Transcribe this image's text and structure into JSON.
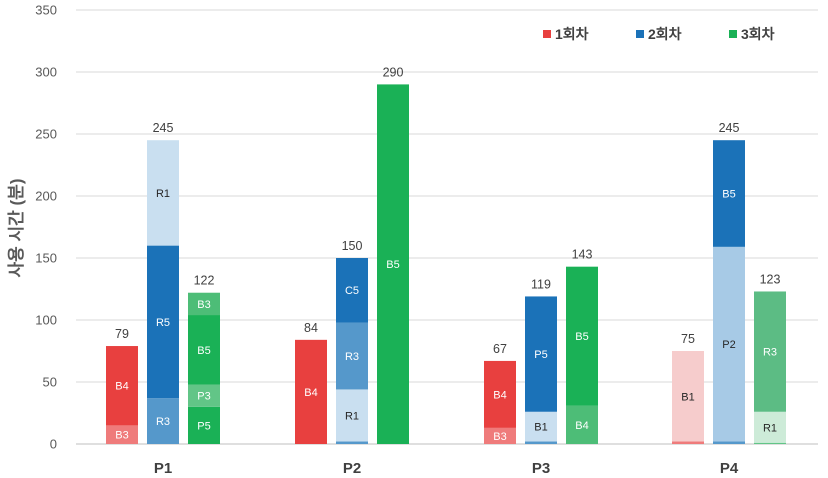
{
  "chart_data": {
    "type": "bar",
    "stacked": true,
    "grouped": true,
    "ylabel": "사용 시간 (분)",
    "xlabel": "",
    "ylim": [
      0,
      350
    ],
    "yticks": [
      0,
      50,
      100,
      150,
      200,
      250,
      300,
      350
    ],
    "grid": true,
    "legend_position": "top-right",
    "series": [
      {
        "name": "1회차",
        "color": "#e8403f"
      },
      {
        "name": "2회차",
        "color": "#1b72b8"
      },
      {
        "name": "3회차",
        "color": "#1ab156"
      }
    ],
    "categories": [
      "P1",
      "P2",
      "P3",
      "P4"
    ],
    "bars": [
      {
        "category": "P1",
        "series": "1회차",
        "total": 79,
        "segments": [
          {
            "label": "B3",
            "value": 15,
            "color": "#ef7b7b"
          },
          {
            "label": "B4",
            "value": 64,
            "color": "#e8403f"
          }
        ]
      },
      {
        "category": "P1",
        "series": "2회차",
        "total": 245,
        "segments": [
          {
            "label": "R3",
            "value": 37,
            "color": "#5598cb"
          },
          {
            "label": "R5",
            "value": 123,
            "color": "#1b72b8"
          },
          {
            "label": "R1",
            "value": 85,
            "color": "#c9dff0"
          }
        ]
      },
      {
        "category": "P1",
        "series": "3회차",
        "total": 122,
        "segments": [
          {
            "label": "P5",
            "value": 30,
            "color": "#1ab156"
          },
          {
            "label": "P3",
            "value": 18,
            "color": "#62c587"
          },
          {
            "label": "B5",
            "value": 56,
            "color": "#1ab156"
          },
          {
            "label": "B3",
            "value": 18,
            "color": "#4dbd77"
          }
        ]
      },
      {
        "category": "P2",
        "series": "1회차",
        "total": 84,
        "segments": [
          {
            "label": "B4",
            "value": 84,
            "color": "#e8403f"
          }
        ]
      },
      {
        "category": "P2",
        "series": "2회차",
        "total": 150,
        "segments": [
          {
            "label": "",
            "value": 2,
            "color": "#5598cb"
          },
          {
            "label": "R1",
            "value": 42,
            "color": "#c9dff0"
          },
          {
            "label": "R3",
            "value": 54,
            "color": "#5598cb"
          },
          {
            "label": "C5",
            "value": 52,
            "color": "#1b72b8"
          }
        ]
      },
      {
        "category": "P2",
        "series": "3회차",
        "total": 290,
        "segments": [
          {
            "label": "B5",
            "value": 290,
            "color": "#1ab156"
          }
        ]
      },
      {
        "category": "P3",
        "series": "1회차",
        "total": 67,
        "segments": [
          {
            "label": "B3",
            "value": 13,
            "color": "#ef7b7b"
          },
          {
            "label": "B4",
            "value": 54,
            "color": "#e8403f"
          }
        ]
      },
      {
        "category": "P3",
        "series": "2회차",
        "total": 119,
        "segments": [
          {
            "label": "",
            "value": 2,
            "color": "#5598cb"
          },
          {
            "label": "B1",
            "value": 24,
            "color": "#c9dff0"
          },
          {
            "label": "P5",
            "value": 93,
            "color": "#1b72b8"
          }
        ]
      },
      {
        "category": "P3",
        "series": "3회차",
        "total": 143,
        "segments": [
          {
            "label": "B4",
            "value": 31,
            "color": "#4dbd77"
          },
          {
            "label": "B5",
            "value": 112,
            "color": "#1ab156"
          }
        ]
      },
      {
        "category": "P4",
        "series": "1회차",
        "total": 75,
        "segments": [
          {
            "label": "",
            "value": 2,
            "color": "#ef7b7b"
          },
          {
            "label": "B1",
            "value": 73,
            "color": "#f6cccc"
          }
        ]
      },
      {
        "category": "P4",
        "series": "2회차",
        "total": 245,
        "segments": [
          {
            "label": "",
            "value": 2,
            "color": "#5598cb"
          },
          {
            "label": "P2",
            "value": 157,
            "color": "#a7cae6"
          },
          {
            "label": "B5",
            "value": 86,
            "color": "#1b72b8"
          }
        ]
      },
      {
        "category": "P4",
        "series": "3회차",
        "total": 123,
        "segments": [
          {
            "label": "",
            "value": 1,
            "color": "#62c587"
          },
          {
            "label": "R1",
            "value": 25,
            "color": "#cdebd8"
          },
          {
            "label": "R3",
            "value": 97,
            "color": "#5cbc84"
          }
        ]
      }
    ]
  }
}
